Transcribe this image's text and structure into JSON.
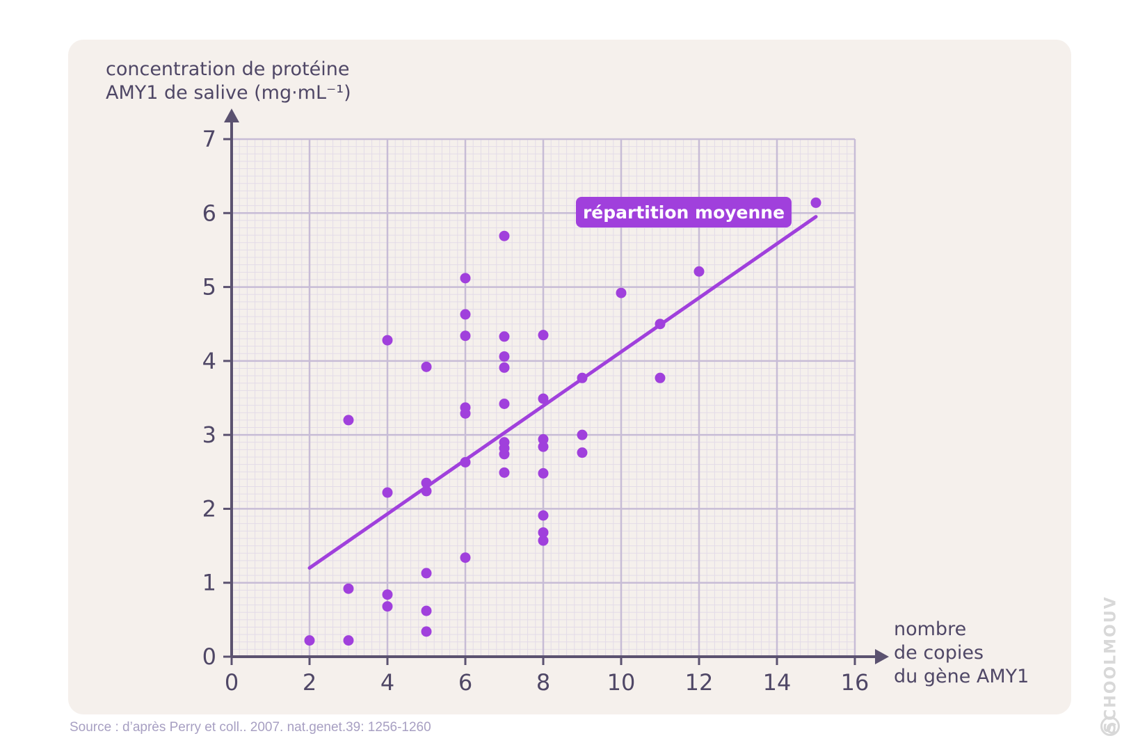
{
  "chart_data": {
    "type": "scatter",
    "ylabel_lines": [
      "concentration de protéine",
      "AMY1 de salive (mg·mL⁻¹)"
    ],
    "xlabel_lines": [
      "nombre",
      "de copies",
      "du gène AMY1"
    ],
    "xlim": [
      0,
      16
    ],
    "ylim": [
      0,
      7
    ],
    "x_ticks": [
      0,
      2,
      4,
      6,
      8,
      10,
      12,
      14,
      16
    ],
    "y_ticks": [
      0,
      1,
      2,
      3,
      4,
      5,
      6,
      7
    ],
    "grid": true,
    "points": [
      [
        2,
        0.22
      ],
      [
        3,
        0.22
      ],
      [
        3,
        0.92
      ],
      [
        3,
        3.2
      ],
      [
        4,
        0.68
      ],
      [
        4,
        0.84
      ],
      [
        4,
        2.22
      ],
      [
        4,
        4.28
      ],
      [
        5,
        0.34
      ],
      [
        5,
        0.62
      ],
      [
        5,
        1.13
      ],
      [
        5,
        2.24
      ],
      [
        5,
        2.35
      ],
      [
        5,
        3.92
      ],
      [
        6,
        1.34
      ],
      [
        6,
        2.63
      ],
      [
        6,
        3.29
      ],
      [
        6,
        3.37
      ],
      [
        6,
        4.34
      ],
      [
        6,
        4.63
      ],
      [
        6,
        5.12
      ],
      [
        7,
        2.49
      ],
      [
        7,
        2.74
      ],
      [
        7,
        2.82
      ],
      [
        7,
        2.9
      ],
      [
        7,
        3.42
      ],
      [
        7,
        3.91
      ],
      [
        7,
        4.06
      ],
      [
        7,
        4.33
      ],
      [
        7,
        5.69
      ],
      [
        8,
        1.57
      ],
      [
        8,
        1.68
      ],
      [
        8,
        1.91
      ],
      [
        8,
        2.48
      ],
      [
        8,
        2.84
      ],
      [
        8,
        2.94
      ],
      [
        8,
        3.49
      ],
      [
        8,
        4.35
      ],
      [
        9,
        2.76
      ],
      [
        9,
        3.0
      ],
      [
        9,
        3.77
      ],
      [
        10,
        4.92
      ],
      [
        11,
        3.77
      ],
      [
        11,
        4.5
      ],
      [
        12,
        5.21
      ],
      [
        15,
        6.14
      ]
    ],
    "trend_line": {
      "label": "répartition moyenne",
      "from": [
        2,
        1.2
      ],
      "to": [
        15,
        5.95
      ]
    }
  },
  "source": "Source : d’après Perry et coll.. 2007. nat.genet.39: 1256-1260",
  "watermark": "SCHOOLMOUV",
  "colors": {
    "panel": "#f5f0ec",
    "grid_major": "#c7bcd6",
    "grid_minor": "#e3dbe8",
    "axis": "#5b5270",
    "text": "#4f4766",
    "points": "#a040dc",
    "trend": "#a040dc",
    "label_bg": "#a040dc",
    "label_text": "#ffffff",
    "source_text": "#a79fc2"
  }
}
